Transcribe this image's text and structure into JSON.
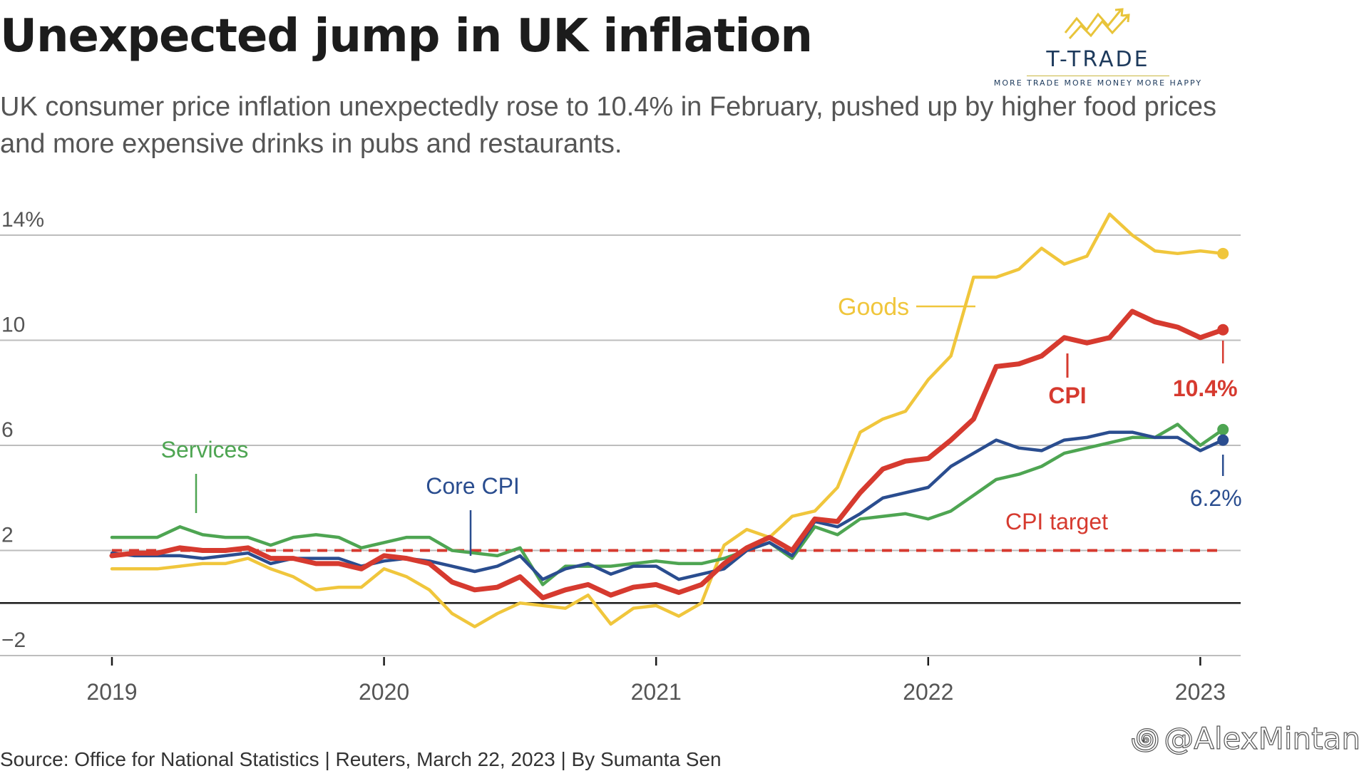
{
  "header": {
    "title": "Unexpected jump in UK inflation",
    "subtitle": "UK consumer price inflation unexpectedly rose to 10.4% in February, pushed up by higher food prices and more expensive drinks in pubs and restaurants."
  },
  "logo": {
    "name": "T-TRADE",
    "tagline": "MORE TRADE MORE MONEY MORE HAPPY",
    "icon": "trend-arrows-icon"
  },
  "footer": {
    "source": "Source: Office for National Statistics | Reuters, March 22, 2023 | By Sumanta Sen",
    "watermark": "@AlexMintan",
    "watermark_icon": "weibo-icon"
  },
  "colors": {
    "cpi": "#d63a2f",
    "core": "#2a4d8f",
    "goods": "#f0c63c",
    "services": "#4ea552",
    "target": "#d63a2f",
    "grid": "#bdbdbd",
    "axis": "#1a1a1a",
    "tick_text": "#555555"
  },
  "chart_data": {
    "type": "line",
    "title": "Unexpected jump in UK inflation",
    "xlabel": "",
    "ylabel": "",
    "ylim": [
      -2,
      14
    ],
    "y_ticks": [
      14,
      10,
      6,
      2,
      -2
    ],
    "y_tick_labels": [
      "14%",
      "10",
      "6",
      "2",
      "−2"
    ],
    "x_ticks": [
      "2019",
      "2020",
      "2021",
      "2022",
      "2023"
    ],
    "x_start": "2019-01",
    "x_end": "2023-02",
    "grid": true,
    "target": {
      "label": "CPI target",
      "value": 2
    },
    "series": [
      {
        "name": "Goods",
        "label": "Goods",
        "color_key": "goods",
        "end_label": "",
        "values": [
          1.3,
          1.3,
          1.3,
          1.4,
          1.5,
          1.5,
          1.7,
          1.3,
          1.0,
          0.5,
          0.6,
          0.6,
          1.3,
          1.0,
          0.5,
          -0.4,
          -0.9,
          -0.4,
          0.0,
          -0.1,
          -0.2,
          0.3,
          -0.8,
          -0.2,
          -0.1,
          -0.5,
          0.0,
          2.2,
          2.8,
          2.5,
          3.3,
          3.5,
          4.4,
          6.5,
          7.0,
          7.3,
          8.5,
          9.4,
          12.4,
          12.4,
          12.7,
          13.5,
          12.9,
          13.2,
          14.8,
          14.0,
          13.4,
          13.3,
          13.4,
          13.3
        ]
      },
      {
        "name": "CPI",
        "label": "CPI",
        "color_key": "cpi",
        "end_label": "10.4%",
        "values": [
          1.8,
          1.9,
          1.9,
          2.1,
          2.0,
          2.0,
          2.1,
          1.7,
          1.7,
          1.5,
          1.5,
          1.3,
          1.8,
          1.7,
          1.5,
          0.8,
          0.5,
          0.6,
          1.0,
          0.2,
          0.5,
          0.7,
          0.3,
          0.6,
          0.7,
          0.4,
          0.7,
          1.5,
          2.1,
          2.5,
          2.0,
          3.2,
          3.1,
          4.2,
          5.1,
          5.4,
          5.5,
          6.2,
          7.0,
          9.0,
          9.1,
          9.4,
          10.1,
          9.9,
          10.1,
          11.1,
          10.7,
          10.5,
          10.1,
          10.4
        ]
      },
      {
        "name": "Core CPI",
        "label": "Core CPI",
        "color_key": "core",
        "end_label": "6.2%",
        "values": [
          1.9,
          1.8,
          1.8,
          1.8,
          1.7,
          1.8,
          1.9,
          1.5,
          1.7,
          1.7,
          1.7,
          1.4,
          1.6,
          1.7,
          1.6,
          1.4,
          1.2,
          1.4,
          1.8,
          0.9,
          1.3,
          1.5,
          1.1,
          1.4,
          1.4,
          0.9,
          1.1,
          1.3,
          2.0,
          2.3,
          1.8,
          3.1,
          2.9,
          3.4,
          4.0,
          4.2,
          4.4,
          5.2,
          5.7,
          6.2,
          5.9,
          5.8,
          6.2,
          6.3,
          6.5,
          6.5,
          6.3,
          6.3,
          5.8,
          6.2
        ]
      },
      {
        "name": "Services",
        "label": "Services",
        "color_key": "services",
        "end_label": "",
        "values": [
          2.5,
          2.5,
          2.5,
          2.9,
          2.6,
          2.5,
          2.5,
          2.2,
          2.5,
          2.6,
          2.5,
          2.1,
          2.3,
          2.5,
          2.5,
          2.0,
          1.9,
          1.8,
          2.1,
          0.7,
          1.4,
          1.4,
          1.4,
          1.5,
          1.6,
          1.5,
          1.5,
          1.7,
          2.0,
          2.3,
          1.7,
          2.9,
          2.6,
          3.2,
          3.3,
          3.4,
          3.2,
          3.5,
          4.1,
          4.7,
          4.9,
          5.2,
          5.7,
          5.9,
          6.1,
          6.3,
          6.3,
          6.8,
          6.0,
          6.6
        ]
      }
    ],
    "annotations": [
      {
        "text": "Goods",
        "series": "Goods"
      },
      {
        "text": "CPI",
        "series": "CPI"
      },
      {
        "text": "10.4%",
        "series": "CPI"
      },
      {
        "text": "Services",
        "series": "Services"
      },
      {
        "text": "Core CPI",
        "series": "Core CPI"
      },
      {
        "text": "6.2%",
        "series": "Core CPI"
      },
      {
        "text": "CPI target",
        "series": "CPI target"
      }
    ]
  }
}
